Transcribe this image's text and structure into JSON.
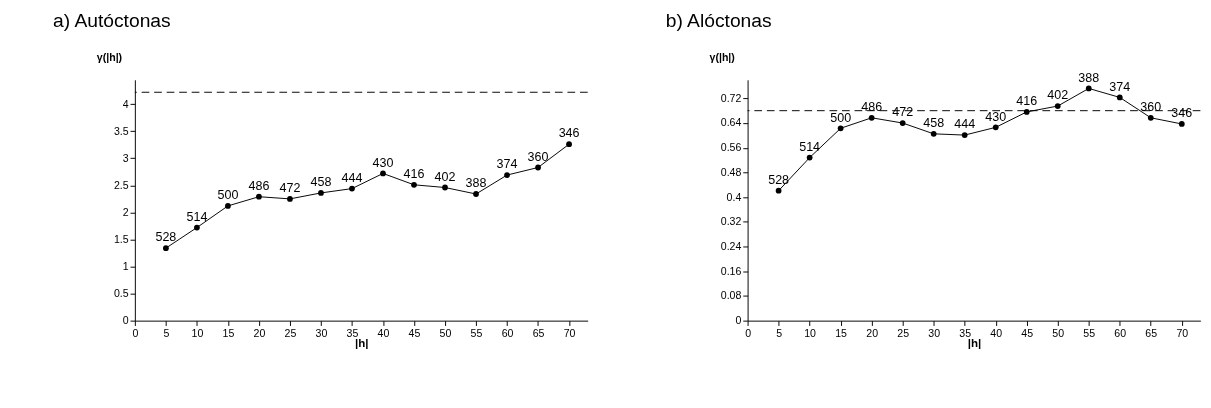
{
  "chart_data": [
    {
      "type": "line",
      "title": "a) Autóctonas",
      "xlabel": "|h|",
      "ylabel": "γ(|h|)",
      "x": [
        5,
        10,
        15,
        20,
        25,
        30,
        35,
        40,
        45,
        50,
        55,
        60,
        65,
        70
      ],
      "series": [
        {
          "color": "#000000",
          "values": [
            1.34,
            1.72,
            2.12,
            2.29,
            2.25,
            2.36,
            2.44,
            2.72,
            2.51,
            2.46,
            2.34,
            2.69,
            2.83,
            3.26
          ]
        }
      ],
      "annotations": [
        {
          "text": "528",
          "x": 5,
          "y": 1.34
        },
        {
          "text": "514",
          "x": 10,
          "y": 1.72
        },
        {
          "text": "500",
          "x": 15,
          "y": 2.12
        },
        {
          "text": "486",
          "x": 20,
          "y": 2.29
        },
        {
          "text": "472",
          "x": 25,
          "y": 2.25
        },
        {
          "text": "458",
          "x": 30,
          "y": 2.36
        },
        {
          "text": "444",
          "x": 35,
          "y": 2.44
        },
        {
          "text": "430",
          "x": 40,
          "y": 2.72
        },
        {
          "text": "416",
          "x": 45,
          "y": 2.51
        },
        {
          "text": "402",
          "x": 50,
          "y": 2.46
        },
        {
          "text": "388",
          "x": 55,
          "y": 2.34
        },
        {
          "text": "374",
          "x": 60,
          "y": 2.69
        },
        {
          "text": "360",
          "x": 65,
          "y": 2.83
        },
        {
          "text": "346",
          "x": 70,
          "y": 3.26
        }
      ],
      "xlim": [
        0,
        73
      ],
      "xticks": [
        0,
        5,
        10,
        15,
        20,
        25,
        30,
        35,
        40,
        45,
        50,
        55,
        60,
        65,
        70
      ],
      "ylim": [
        0,
        4.45
      ],
      "yticks": [
        0,
        0.5,
        1,
        1.5,
        2,
        2.5,
        3,
        3.5,
        4
      ],
      "ref_lines": [
        {
          "axis": "y",
          "value": 4.22,
          "line_style": "dashed"
        }
      ],
      "grid": false,
      "marker": "circle",
      "line_style": "solid"
    },
    {
      "type": "line",
      "title": "b) Alóctonas",
      "xlabel": "|h|",
      "ylabel": "γ(|h|)",
      "x": [
        5,
        10,
        15,
        20,
        25,
        30,
        35,
        40,
        45,
        50,
        55,
        60,
        65,
        70
      ],
      "series": [
        {
          "color": "#000000",
          "values": [
            0.421,
            0.528,
            0.623,
            0.657,
            0.64,
            0.605,
            0.601,
            0.626,
            0.676,
            0.695,
            0.752,
            0.723,
            0.657,
            0.637
          ]
        }
      ],
      "annotations": [
        {
          "text": "528",
          "x": 5,
          "y": 0.421
        },
        {
          "text": "514",
          "x": 10,
          "y": 0.528
        },
        {
          "text": "500",
          "x": 15,
          "y": 0.623
        },
        {
          "text": "486",
          "x": 20,
          "y": 0.657
        },
        {
          "text": "472",
          "x": 25,
          "y": 0.64
        },
        {
          "text": "458",
          "x": 30,
          "y": 0.605
        },
        {
          "text": "444",
          "x": 35,
          "y": 0.601
        },
        {
          "text": "430",
          "x": 40,
          "y": 0.626
        },
        {
          "text": "416",
          "x": 45,
          "y": 0.676
        },
        {
          "text": "402",
          "x": 50,
          "y": 0.695
        },
        {
          "text": "388",
          "x": 55,
          "y": 0.752
        },
        {
          "text": "374",
          "x": 60,
          "y": 0.723
        },
        {
          "text": "360",
          "x": 65,
          "y": 0.657
        },
        {
          "text": "346",
          "x": 70,
          "y": 0.637
        }
      ],
      "xlim": [
        0,
        73
      ],
      "xticks": [
        0,
        5,
        10,
        15,
        20,
        25,
        30,
        35,
        40,
        45,
        50,
        55,
        60,
        65,
        70
      ],
      "ylim": [
        0,
        0.78
      ],
      "yticks": [
        0,
        0.08,
        0.16,
        0.24,
        0.32,
        0.4,
        0.48,
        0.56,
        0.64,
        0.72
      ],
      "ref_lines": [
        {
          "axis": "y",
          "value": 0.68,
          "line_style": "dashed"
        }
      ],
      "grid": false,
      "marker": "circle",
      "line_style": "solid"
    }
  ]
}
